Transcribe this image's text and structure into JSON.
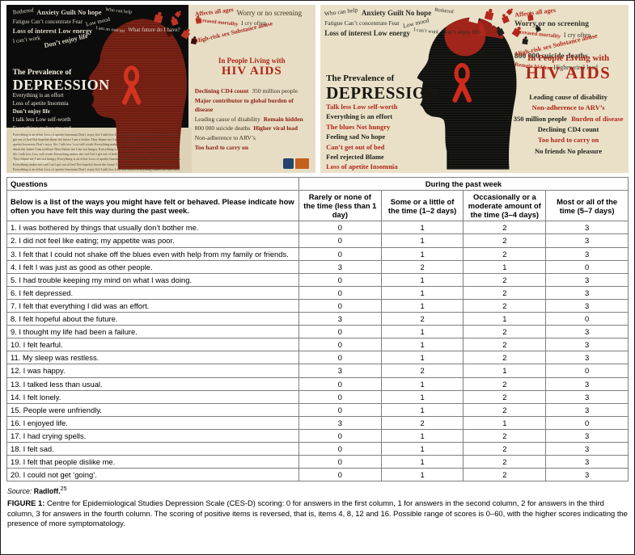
{
  "posters": {
    "left": {
      "title_line1": "The Prevalence of",
      "title_line2": "DEPRESSION",
      "subtitle_line1": "In People Living with",
      "subtitle_line2": "HIV AIDS",
      "words_top": [
        "Bothered",
        "Anxiety Guilt No hope",
        "Who can help",
        "Fatigue Can’t concentrate Fear",
        "Low mood",
        "Loss of interest Low energy",
        "I am an outcast",
        "What future do I have?",
        "I can’t work",
        "Don’t enjoy life"
      ],
      "words_top_right": [
        "Affects all ages",
        "Worry or no screening",
        "Increased mortality",
        "I cry often",
        "High-risk sex Substance abuse"
      ],
      "words_left": [
        "Everything is an effort",
        "Loss of apetite Insomnia",
        "Don’t enjoy life",
        "I talk less Low self-worth",
        "Everything makes me sad",
        "Can’t get out of bed",
        "Not hopeful about the future",
        "I am a failure They blame me",
        "I am not hungry"
      ],
      "words_right": [
        "Declining CD4 count",
        "350 million people",
        "Major contributor to global burden of disease",
        "Leading cause of disability",
        "Remain hidden",
        "800 000 suicide deaths",
        "Higher viral load",
        "Non-adherence to ARV’s",
        "Too hard to carry on"
      ]
    },
    "right": {
      "title_line1": "The Prevalence of",
      "title_line2": "DEPRESSION",
      "subtitle_line1": "In People Living with",
      "subtitle_line2": "HIV AIDS",
      "words_top": [
        "Who can help",
        "Anxiety Guilt No hope",
        "Bothered",
        "Fatigue Can’t concentrate Fear",
        "Low mood",
        "Loss of interest Low energy",
        "I can’t work",
        "Don’t enjoy life"
      ],
      "words_top_right": [
        "Affects all ages",
        "Worry or no screening",
        "Increased mortality",
        "I cry often",
        "High-risk sex Substance abuse",
        "800 000 suicide deaths",
        "Remain hidden",
        "Higher viral load"
      ],
      "words_left": [
        "Talk less Low self-worth",
        "Everything is an effort",
        "The blues Not hungry",
        "Feeling sad No hope",
        "Can’t get out of bed",
        "Feel rejected Blame",
        "Loss of apetite Insomnia"
      ],
      "words_right": [
        "Leading cause of disability",
        "Non-adherence to ARV’s",
        "350 million people",
        "Burden of disease",
        "Declining CD4 count",
        "Too hard to carry on",
        "No friends No pleasure"
      ]
    }
  },
  "table": {
    "col_questions": "Questions",
    "col_week": "During the past week",
    "instruction": "Below is a list of the ways you might have felt or behaved. Please indicate how often you have felt this way during the past week.",
    "answer_headers": [
      "Rarely or none of the time (less than 1 day)",
      "Some or a little of the time (1–2 days)",
      "Occasionally or a moderate amount of the time (3–4 days)",
      "Most or all of the time (5–7 days)"
    ],
    "rows": [
      {
        "q": "1. I was bothered by things that usually don’t bother me.",
        "v": [
          0,
          1,
          2,
          3
        ]
      },
      {
        "q": "2. I did not feel like eating; my appetite was poor.",
        "v": [
          0,
          1,
          2,
          3
        ]
      },
      {
        "q": "3. I felt that I could not shake off the blues even with help from my family or friends.",
        "v": [
          0,
          1,
          2,
          3
        ]
      },
      {
        "q": "4. I felt I was just as good as other people.",
        "v": [
          3,
          2,
          1,
          0
        ]
      },
      {
        "q": "5. I had trouble keeping my mind on what I was doing.",
        "v": [
          0,
          1,
          2,
          3
        ]
      },
      {
        "q": "6. I felt depressed.",
        "v": [
          0,
          1,
          2,
          3
        ]
      },
      {
        "q": "7. I felt that everything I did was an effort.",
        "v": [
          0,
          1,
          2,
          3
        ]
      },
      {
        "q": "8. I felt hopeful about the future.",
        "v": [
          3,
          2,
          1,
          0
        ]
      },
      {
        "q": "9. I thought my life had been a failure.",
        "v": [
          0,
          1,
          2,
          3
        ]
      },
      {
        "q": "10. I felt fearful.",
        "v": [
          0,
          1,
          2,
          3
        ]
      },
      {
        "q": "11. My sleep was restless.",
        "v": [
          0,
          1,
          2,
          3
        ]
      },
      {
        "q": "12. I was happy.",
        "v": [
          3,
          2,
          1,
          0
        ]
      },
      {
        "q": "13. I talked less than usual.",
        "v": [
          0,
          1,
          2,
          3
        ]
      },
      {
        "q": "14. I felt lonely.",
        "v": [
          0,
          1,
          2,
          3
        ]
      },
      {
        "q": "15. People were unfriendly.",
        "v": [
          0,
          1,
          2,
          3
        ]
      },
      {
        "q": "16. I enjoyed life.",
        "v": [
          3,
          2,
          1,
          0
        ]
      },
      {
        "q": "17. I had crying spells.",
        "v": [
          0,
          1,
          2,
          3
        ]
      },
      {
        "q": "18. I felt sad.",
        "v": [
          0,
          1,
          2,
          3
        ]
      },
      {
        "q": "19. I felt that people dislike me.",
        "v": [
          0,
          1,
          2,
          3
        ]
      },
      {
        "q": "20. I could not get ‘going’.",
        "v": [
          0,
          1,
          2,
          3
        ]
      }
    ]
  },
  "caption": {
    "source_label": "Source:",
    "source_value": "Radloff.",
    "source_sup": "25",
    "figure_label": "FIGURE 1:",
    "figure_text": "Centre for Epidemiological Studies Depression Scale (CES-D) scoring: 0 for answers in the first column, 1 for answers in the second column, 2 for answers in the third column, 3 for answers in the fourth column. The scoring of positive items is reversed, that is, items 4, 8, 12 and 16. Possible range of scores is 0–60, with the higher scores indicating the presence of more symptomatology."
  },
  "colors": {
    "accent_red": "#b02618",
    "poster_beige": "#eae0c8",
    "poster_dark": "#0c0c0c"
  }
}
